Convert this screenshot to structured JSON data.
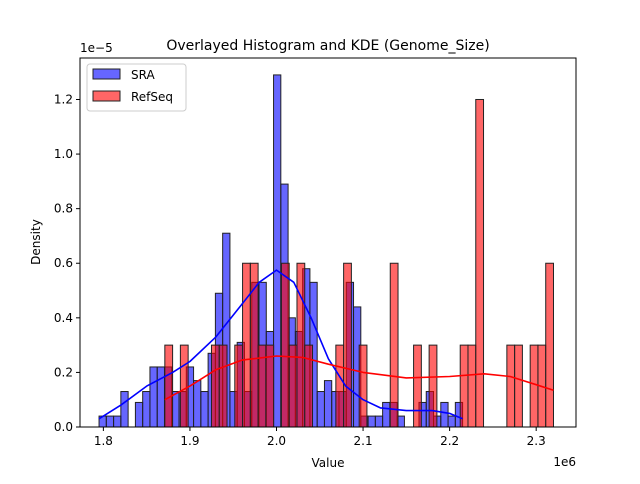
{
  "chart_data": {
    "type": "histogram",
    "title": "Overlayed Histogram and KDE (Genome_Size)",
    "xlabel": "Value",
    "ylabel": "Density",
    "x_offset_label": "1e6",
    "y_offset_label": "1e−5",
    "xlim": [
      1.773,
      2.346
    ],
    "ylim": [
      0,
      1.352
    ],
    "xticks": [
      1.8,
      1.9,
      2.0,
      2.1,
      2.2,
      2.3
    ],
    "xtick_labels": [
      "1.8",
      "1.9",
      "2.0",
      "2.1",
      "2.2",
      "2.3"
    ],
    "yticks": [
      0,
      0.2,
      0.4,
      0.6,
      0.8,
      1.0,
      1.2
    ],
    "ytick_labels": [
      "0.0",
      "0.2",
      "0.4",
      "0.6",
      "0.8",
      "1.0",
      "1.2"
    ],
    "grid": false,
    "legend_placement": "top-left",
    "series": [
      {
        "name": "SRA",
        "color": "#0000ff",
        "bin_start": 1.795,
        "bin_width": 0.0084,
        "values": [
          0.04,
          0.04,
          0.04,
          0.13,
          0,
          0.09,
          0.13,
          0.22,
          0.22,
          0.22,
          0.13,
          0.13,
          0.22,
          0.17,
          0.13,
          0.27,
          0.49,
          0.71,
          0.13,
          0.31,
          0.13,
          0.53,
          0.53,
          0.35,
          1.29,
          0.89,
          0.4,
          0.35,
          0.58,
          0.53,
          0.13,
          0.17,
          0.13,
          0.13,
          0.53,
          0.44,
          0.04,
          0.04,
          0.04,
          0.09,
          0.09,
          0.04,
          0,
          0,
          0.09,
          0.13,
          0.04,
          0.09,
          0.04,
          0.09
        ],
        "kde": [
          [
            1.795,
            0.03
          ],
          [
            1.82,
            0.08
          ],
          [
            1.85,
            0.15
          ],
          [
            1.88,
            0.2
          ],
          [
            1.9,
            0.24
          ],
          [
            1.93,
            0.33
          ],
          [
            1.96,
            0.45
          ],
          [
            1.98,
            0.53
          ],
          [
            2.0,
            0.575
          ],
          [
            2.02,
            0.53
          ],
          [
            2.04,
            0.4
          ],
          [
            2.06,
            0.25
          ],
          [
            2.08,
            0.15
          ],
          [
            2.1,
            0.1
          ],
          [
            2.12,
            0.07
          ],
          [
            2.15,
            0.06
          ],
          [
            2.18,
            0.06
          ],
          [
            2.2,
            0.05
          ],
          [
            2.215,
            0.03
          ]
        ]
      },
      {
        "name": "RefSeq",
        "color": "#ff0000",
        "bin_start": 1.871,
        "bin_width": 0.00898,
        "values": [
          0.3,
          0,
          0.3,
          0,
          0,
          0,
          0.3,
          0.3,
          0,
          0.3,
          0.6,
          0.6,
          0.3,
          0.3,
          0,
          0.6,
          0.3,
          0.6,
          0.3,
          0,
          0,
          0,
          0.3,
          0.6,
          0,
          0.3,
          0,
          0,
          0,
          0.6,
          0,
          0,
          0.3,
          0,
          0.3,
          0,
          0,
          0,
          0.3,
          0.3,
          1.2,
          0,
          0,
          0,
          0.3,
          0.3,
          0,
          0.3,
          0.3,
          0.6
        ],
        "kde": [
          [
            1.871,
            0.1
          ],
          [
            1.9,
            0.15
          ],
          [
            1.93,
            0.21
          ],
          [
            1.96,
            0.245
          ],
          [
            2.0,
            0.26
          ],
          [
            2.03,
            0.255
          ],
          [
            2.06,
            0.23
          ],
          [
            2.1,
            0.2
          ],
          [
            2.15,
            0.18
          ],
          [
            2.2,
            0.185
          ],
          [
            2.24,
            0.195
          ],
          [
            2.27,
            0.185
          ],
          [
            2.3,
            0.155
          ],
          [
            2.32,
            0.135
          ]
        ]
      }
    ]
  }
}
